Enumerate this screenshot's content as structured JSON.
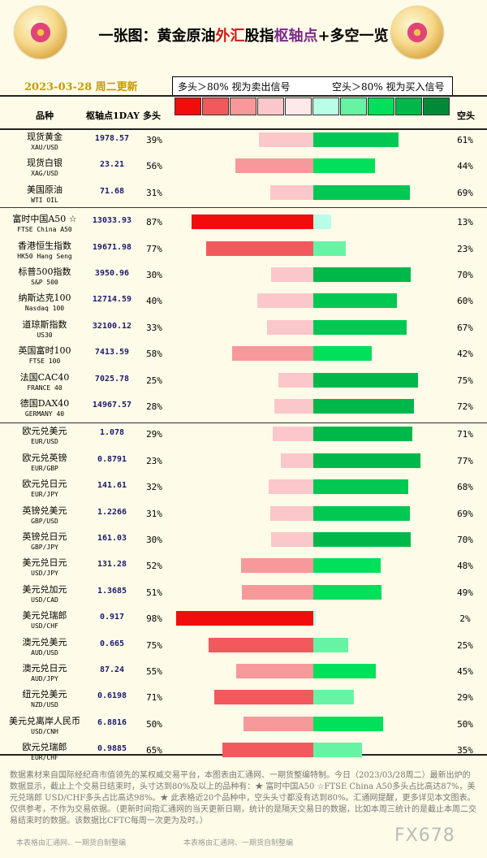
{
  "header": {
    "title_parts": [
      "一张图：黄金原油",
      "外汇",
      "股指",
      "枢轴点",
      "+多空一览"
    ],
    "date": "2023-03-28 周二更新",
    "legend_left": "多头＞80% 视为卖出信号",
    "legend_right": "空头＞80% 视为买入信号",
    "col_variety": "品种",
    "col_pivot": "枢轴点1DAY",
    "col_long": "多头",
    "col_short": "空头"
  },
  "colors": {
    "long_scale": [
      "#f20d0d",
      "#f2595c",
      "#f7999a",
      "#fcc7ca",
      "#fde8ea"
    ],
    "short_scale": [
      "#b7ffe6",
      "#66f4a4",
      "#00e05a",
      "#00b84a",
      "#008a38"
    ]
  },
  "chart_data": {
    "type": "bar",
    "title": "一张图：黄金原油外汇股指枢轴点+多空一览",
    "rows": [
      {
        "name": "现货黄金",
        "code": "XAU/USD",
        "pivot": "1978.57",
        "long": 39,
        "short": 61
      },
      {
        "name": "现货白银",
        "code": "XAG/USD",
        "pivot": "23.21",
        "long": 56,
        "short": 44
      },
      {
        "name": "美国原油",
        "code": "WTI OIL",
        "pivot": "71.68",
        "long": 31,
        "short": 69
      },
      {
        "name": "富时中国A50 ☆",
        "code": "FTSE China A50",
        "pivot": "13033.93",
        "long": 87,
        "short": 13
      },
      {
        "name": "香港恒生指数",
        "code": "HK50 Hang Seng",
        "pivot": "19671.98",
        "long": 77,
        "short": 23
      },
      {
        "name": "标普500指数",
        "code": "S&P 500",
        "pivot": "3950.96",
        "long": 30,
        "short": 70
      },
      {
        "name": "纳斯达克100",
        "code": "Nasdaq 100",
        "pivot": "12714.59",
        "long": 40,
        "short": 60
      },
      {
        "name": "道琼斯指数",
        "code": "US30",
        "pivot": "32100.12",
        "long": 33,
        "short": 67
      },
      {
        "name": "英国富时100",
        "code": "FTSE 100",
        "pivot": "7413.59",
        "long": 58,
        "short": 42
      },
      {
        "name": "法国CAC40",
        "code": "FRANCE 40",
        "pivot": "7025.78",
        "long": 25,
        "short": 75
      },
      {
        "name": "德国DAX40",
        "code": "GERMANY 40",
        "pivot": "14967.57",
        "long": 28,
        "short": 72
      },
      {
        "name": "欧元兑美元",
        "code": "EUR/USD",
        "pivot": "1.078",
        "long": 29,
        "short": 71
      },
      {
        "name": "欧元兑英镑",
        "code": "EUR/GBP",
        "pivot": "0.8791",
        "long": 23,
        "short": 77
      },
      {
        "name": "欧元兑日元",
        "code": "EUR/JPY",
        "pivot": "141.61",
        "long": 32,
        "short": 68
      },
      {
        "name": "英镑兑美元",
        "code": "GBP/USD",
        "pivot": "1.2266",
        "long": 31,
        "short": 69
      },
      {
        "name": "英镑兑日元",
        "code": "GBP/JPY",
        "pivot": "161.03",
        "long": 30,
        "short": 70
      },
      {
        "name": "美元兑日元",
        "code": "USD/JPY",
        "pivot": "131.28",
        "long": 52,
        "short": 48
      },
      {
        "name": "美元兑加元",
        "code": "USD/CAD",
        "pivot": "1.3685",
        "long": 51,
        "short": 49
      },
      {
        "name": "美元兑瑞郎",
        "code": "USD/CHF",
        "pivot": "0.917",
        "long": 98,
        "short": 2
      },
      {
        "name": "澳元兑美元",
        "code": "AUD/USD",
        "pivot": "0.665",
        "long": 75,
        "short": 25
      },
      {
        "name": "澳元兑日元",
        "code": "AUD/JPY",
        "pivot": "87.24",
        "long": 55,
        "short": 45
      },
      {
        "name": "纽元兑美元",
        "code": "NZD/USD",
        "pivot": "0.6198",
        "long": 71,
        "short": 29
      },
      {
        "name": "美元兑离岸人民币",
        "code": "USD/CNH",
        "pivot": "6.8816",
        "long": 50,
        "short": 50
      },
      {
        "name": "欧元兑瑞郎",
        "code": "EUR/CHF",
        "pivot": "0.9885",
        "long": 65,
        "short": 35
      }
    ]
  },
  "footer": {
    "text": "数据素材来自国际经纪商市值领先的某权威交易平台，本图表由汇通网、一期货整编特制。今日（2023/03/28周二）最新出炉的数据显示，截止上个交易日结束时，头寸达到80%及以上的品种有：★ 富时中国A50 ☆FTSE China A50多头占比高达87%，美元兑瑞郎 USD/CHF多头占比高达98%。★ 此表格近20个品种中，空头头寸都没有达到80%。汇通网提醒，更多详见本文图表。仅供参考，不作为交易依据。（更新时间指汇通网的当天更新日期，统计的是隔天交易日的数据，比如本周三统计的是截止本周二交易结束时的数据。该数据比CFTC每周一次更为及时。）",
    "credit": "本表格由汇通网、一期货自制整编",
    "watermark": "FX678"
  }
}
